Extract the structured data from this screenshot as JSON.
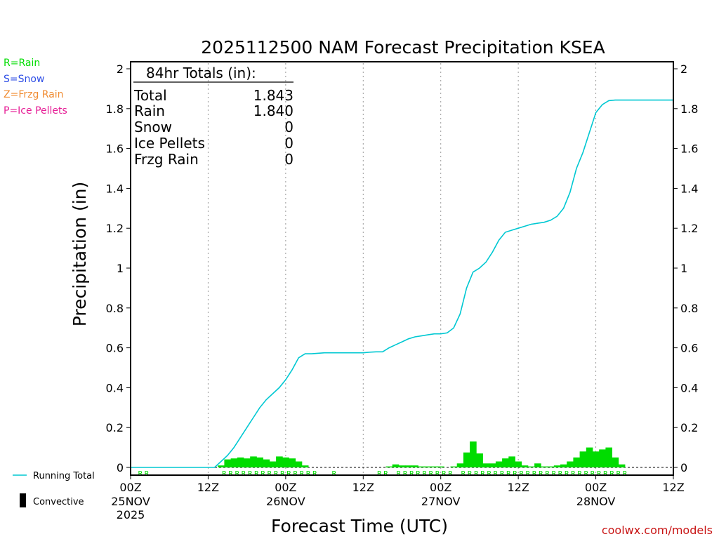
{
  "chart_data": {
    "type": "line",
    "title": "2025112500 NAM Forecast Precipitation KSEA",
    "xlabel": "Forecast Time (UTC)",
    "ylabel": "Precipitation (in)",
    "ylim": [
      0,
      2
    ],
    "xlim_hours": [
      0,
      84
    ],
    "y_ticks": [
      "0",
      "0.2",
      "0.4",
      "0.6",
      "0.8",
      "1",
      "1.2",
      "1.4",
      "1.6",
      "1.8",
      "2"
    ],
    "x_ticks": [
      {
        "hour": 0,
        "label": "00Z",
        "date": "25NOV",
        "year": "2025"
      },
      {
        "hour": 12,
        "label": "12Z",
        "date": "",
        "year": ""
      },
      {
        "hour": 24,
        "label": "00Z",
        "date": "26NOV",
        "year": ""
      },
      {
        "hour": 36,
        "label": "12Z",
        "date": "",
        "year": ""
      },
      {
        "hour": 48,
        "label": "00Z",
        "date": "27NOV",
        "year": ""
      },
      {
        "hour": 60,
        "label": "12Z",
        "date": "",
        "year": ""
      },
      {
        "hour": 72,
        "label": "00Z",
        "date": "28NOV",
        "year": ""
      },
      {
        "hour": 84,
        "label": "12Z",
        "date": "",
        "year": ""
      }
    ],
    "running_total": {
      "name": "Running Total",
      "color": "#00c8d2",
      "x": [
        0,
        12,
        13,
        14,
        15,
        16,
        17,
        18,
        19,
        20,
        21,
        22,
        23,
        24,
        25,
        26,
        27,
        28,
        30,
        32,
        34,
        36,
        37,
        38,
        39,
        40,
        41,
        42,
        43,
        44,
        45,
        46,
        47,
        48,
        49,
        50,
        51,
        52,
        53,
        54,
        55,
        56,
        57,
        58,
        59,
        60,
        61,
        62,
        63,
        64,
        65,
        66,
        67,
        68,
        69,
        70,
        71,
        72,
        73,
        74,
        75,
        76,
        77,
        84
      ],
      "values": [
        0,
        0,
        0.0,
        0.03,
        0.06,
        0.1,
        0.15,
        0.2,
        0.25,
        0.3,
        0.34,
        0.37,
        0.4,
        0.44,
        0.49,
        0.55,
        0.57,
        0.57,
        0.575,
        0.575,
        0.575,
        0.575,
        0.578,
        0.58,
        0.58,
        0.6,
        0.615,
        0.63,
        0.645,
        0.655,
        0.66,
        0.665,
        0.67,
        0.67,
        0.675,
        0.7,
        0.77,
        0.9,
        0.98,
        1.0,
        1.03,
        1.08,
        1.14,
        1.18,
        1.19,
        1.2,
        1.21,
        1.22,
        1.225,
        1.23,
        1.24,
        1.26,
        1.3,
        1.38,
        1.5,
        1.58,
        1.68,
        1.78,
        1.82,
        1.84,
        1.843,
        1.843,
        1.843,
        1.843
      ]
    },
    "hourly_rain": {
      "name": "Rain",
      "color": "#00dc00",
      "start_hour": 0,
      "values": [
        0,
        0,
        0,
        0,
        0,
        0,
        0,
        0,
        0,
        0,
        0,
        0,
        0,
        0.01,
        0.04,
        0.045,
        0.05,
        0.045,
        0.055,
        0.05,
        0.04,
        0.03,
        0.055,
        0.05,
        0.045,
        0.03,
        0.01,
        0,
        0,
        0,
        0,
        0,
        0,
        0,
        0,
        0,
        0,
        0,
        0,
        0.005,
        0.015,
        0.01,
        0.01,
        0.01,
        0.005,
        0.005,
        0.005,
        0.005,
        0,
        0.005,
        0.02,
        0.075,
        0.13,
        0.07,
        0.02,
        0.02,
        0.03,
        0.045,
        0.055,
        0.03,
        0.01,
        0.005,
        0.02,
        0.005,
        0.005,
        0.01,
        0.015,
        0.03,
        0.05,
        0.08,
        0.1,
        0.08,
        0.09,
        0.1,
        0.05,
        0.015,
        0,
        0,
        0,
        0,
        0,
        0,
        0,
        0
      ]
    },
    "ptype_labels": {
      "color": "#00dc00",
      "text": "R",
      "hours": [
        1,
        2,
        14,
        15,
        16,
        17,
        18,
        19,
        20,
        21,
        22,
        23,
        24,
        25,
        26,
        27,
        28,
        31,
        38,
        39,
        41,
        42,
        43,
        44,
        45,
        46,
        47,
        48,
        49,
        51,
        52,
        53,
        54,
        55,
        56,
        57,
        58,
        59,
        60,
        61,
        62,
        63,
        64,
        65,
        66,
        67,
        68,
        69,
        70,
        71,
        72,
        73,
        74,
        75,
        76
      ]
    },
    "totals_box": {
      "heading": "84hr Totals (in):",
      "rows": [
        {
          "label": "Total",
          "value": "1.843"
        },
        {
          "label": "Rain",
          "value": "1.840"
        },
        {
          "label": "Snow",
          "value": "0"
        },
        {
          "label": "Ice Pellets",
          "value": "0"
        },
        {
          "label": "Frzg Rain",
          "value": "0"
        }
      ]
    },
    "ptype_legend": [
      {
        "text": "R=Rain",
        "color": "#00dc00"
      },
      {
        "text": "S=Snow",
        "color": "#2e4ee6"
      },
      {
        "text": "Z=Frzg Rain",
        "color": "#f08c32"
      },
      {
        "text": "P=Ice Pellets",
        "color": "#e61e96"
      }
    ],
    "bottom_legend": {
      "running_total_label": "Running Total",
      "convective_label": "Convective"
    },
    "credit": "coolwx.com/models",
    "credit_color": "#c81414"
  }
}
